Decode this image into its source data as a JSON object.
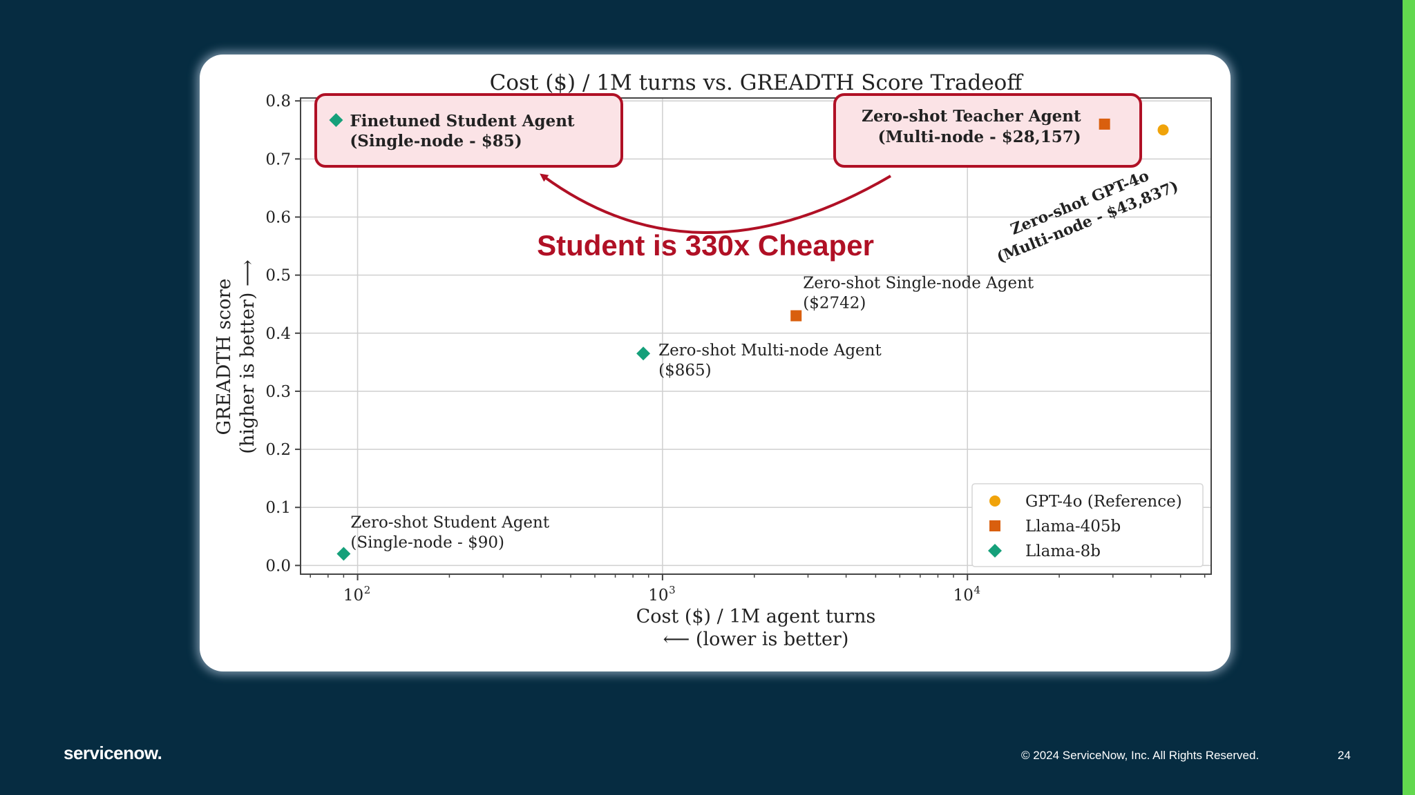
{
  "slide": {
    "background": "#062c41",
    "accent_bar_color": "#62d84e",
    "footer": {
      "logo_text": "servicenow.",
      "copyright": "© 2024 ServiceNow, Inc. All Rights Reserved.",
      "page_number": "24"
    }
  },
  "callouts": {
    "headline": "Student is 330x Cheaper",
    "headline_color": "#b01025",
    "box_border_color": "#b01025",
    "box_fill_color": "#fbe3e6"
  },
  "chart_data": {
    "type": "scatter",
    "title": "Cost ($) / 1M turns vs. GREADTH Score Tradeoff",
    "xlabel": "Cost ($) / 1M agent turns",
    "xlabel_sub": "⟵ (lower is better)",
    "ylabel": "GREADTH score",
    "ylabel_sub": "(higher is better) ⟶",
    "x_scale": "log",
    "xlim": [
      65,
      63000
    ],
    "ylim": [
      -0.015,
      0.805
    ],
    "x_ticks": [
      {
        "value": 100,
        "label": "10",
        "exp": "2"
      },
      {
        "value": 1000,
        "label": "10",
        "exp": "3"
      },
      {
        "value": 10000,
        "label": "10",
        "exp": "4"
      }
    ],
    "y_ticks": [
      "0.0",
      "0.1",
      "0.2",
      "0.3",
      "0.4",
      "0.5",
      "0.6",
      "0.7",
      "0.8"
    ],
    "grid": true,
    "legend_position": "bottom-right",
    "series": [
      {
        "name": "GPT-4o (Reference)",
        "marker": "circle",
        "color": "#f0a30a",
        "points": [
          {
            "x": 43837,
            "y": 0.75,
            "label": [
              "Zero-shot GPT-4o",
              "(Multi-node - $43,837)"
            ],
            "style": "bold-rotated"
          }
        ]
      },
      {
        "name": "Llama-405b",
        "marker": "square",
        "color": "#d95f0e",
        "points": [
          {
            "x": 28157,
            "y": 0.76,
            "label": [
              "Zero-shot Teacher Agent",
              "(Multi-node - $28,157)"
            ],
            "style": "bold-boxed"
          },
          {
            "x": 2742,
            "y": 0.43,
            "label": [
              "Zero-shot Single-node Agent",
              "($2742)"
            ],
            "style": "plain"
          }
        ]
      },
      {
        "name": "Llama-8b",
        "marker": "diamond",
        "color": "#15a07a",
        "points": [
          {
            "x": 85,
            "y": 0.767,
            "label": [
              "Finetuned Student Agent",
              "(Single-node - $85)"
            ],
            "style": "bold-boxed"
          },
          {
            "x": 865,
            "y": 0.365,
            "label": [
              "Zero-shot Multi-node Agent",
              "($865)"
            ],
            "style": "plain"
          },
          {
            "x": 90,
            "y": 0.02,
            "label": [
              "Zero-shot Student Agent",
              "(Single-node - $90)"
            ],
            "style": "plain"
          }
        ]
      }
    ]
  }
}
